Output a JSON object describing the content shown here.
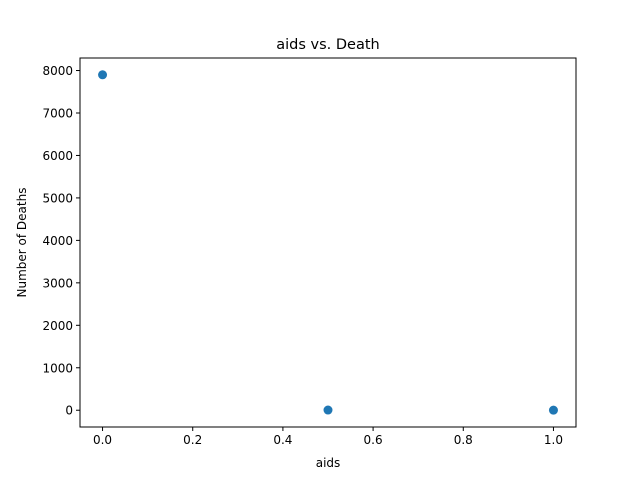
{
  "chart_data": {
    "type": "scatter",
    "title": "aids vs. Death",
    "xlabel": "aids",
    "ylabel": "Number of Deaths",
    "xlim": [
      -0.05,
      1.05
    ],
    "ylim": [
      -395,
      8295
    ],
    "xticks": [
      0.0,
      0.2,
      0.4,
      0.6,
      0.8,
      1.0
    ],
    "xtick_labels": [
      "0.0",
      "0.2",
      "0.4",
      "0.6",
      "0.8",
      "1.0"
    ],
    "yticks": [
      0,
      1000,
      2000,
      3000,
      4000,
      5000,
      6000,
      7000,
      8000
    ],
    "ytick_labels": [
      "0",
      "1000",
      "2000",
      "3000",
      "4000",
      "5000",
      "6000",
      "7000",
      "8000"
    ],
    "points": [
      {
        "x": 0.0,
        "y": 7900
      },
      {
        "x": 0.5,
        "y": 4
      },
      {
        "x": 1.0,
        "y": 2
      }
    ],
    "grid": false,
    "marker_color": "#1f77b4"
  }
}
